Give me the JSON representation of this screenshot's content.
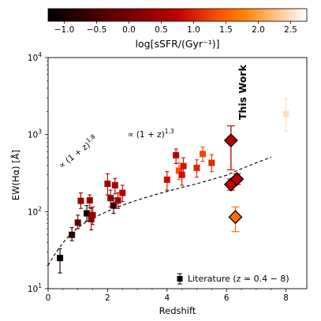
{
  "chart_data": {
    "type": "scatter",
    "xlabel": "Redshift",
    "ylabel": "EW(Hα) [Å]",
    "xlim": [
      0,
      8.7
    ],
    "ylim_log10": [
      1,
      4
    ],
    "x_scale": "linear",
    "y_scale": "log",
    "x_ticks": [
      0,
      2,
      4,
      6,
      8
    ],
    "x_tick_labels": [
      "0",
      "2",
      "4",
      "6",
      "8"
    ],
    "y_ticks": [
      10,
      100,
      1000,
      10000
    ],
    "y_tick_labels": [
      {
        "base": "10",
        "exp": "1"
      },
      {
        "base": "10",
        "exp": "2"
      },
      {
        "base": "10",
        "exp": "3"
      },
      {
        "base": "10",
        "exp": "4"
      }
    ],
    "colorbar": {
      "label": "log[sSFR/(Gyr⁻¹)]",
      "range": [
        -1.25,
        2.75
      ],
      "ticks": [
        -1.0,
        -0.5,
        0.0,
        0.5,
        1.0,
        1.5,
        2.0,
        2.5
      ],
      "tick_labels": [
        "−1.0",
        "−0.5",
        "0.0",
        "0.5",
        "1.0",
        "1.5",
        "2.0",
        "2.5"
      ],
      "colormap": "gist_heat"
    },
    "curve": {
      "style": "dashed",
      "x": [
        0.0,
        0.2,
        0.4,
        0.6,
        0.8,
        1.0,
        1.3,
        1.6,
        2.0,
        2.4,
        2.8,
        3.2,
        3.6,
        4.0,
        4.5,
        5.0,
        5.5,
        6.0,
        6.5,
        7.0,
        7.5
      ],
      "y": [
        20,
        27,
        35,
        44,
        53,
        62,
        74,
        86,
        101,
        117,
        133,
        149,
        166,
        183,
        206,
        230,
        261,
        297,
        360,
        430,
        510
      ],
      "annotations": [
        {
          "base": "∝ (1 + z)",
          "exp": "1.8",
          "x": 0.3,
          "y": 370
        },
        {
          "base": "∝ (1 + z)",
          "exp": "1.3",
          "x": 2.6,
          "y": 760
        }
      ]
    },
    "series": [
      {
        "name": "Literature",
        "marker": "square",
        "points": [
          {
            "x": 0.4,
            "y": 25,
            "ylo": 16,
            "yhi": 33,
            "c": -1.1
          },
          {
            "x": 0.8,
            "y": 50,
            "ylo": 42,
            "yhi": 62,
            "c": -0.8
          },
          {
            "x": 1.0,
            "y": 72,
            "ylo": 60,
            "yhi": 90,
            "c": -0.3
          },
          {
            "x": 1.1,
            "y": 138,
            "ylo": 110,
            "yhi": 175,
            "c": 0.35
          },
          {
            "x": 1.3,
            "y": 95,
            "ylo": 75,
            "yhi": 120,
            "c": -0.9
          },
          {
            "x": 1.4,
            "y": 140,
            "ylo": 112,
            "yhi": 165,
            "c": 0.35
          },
          {
            "x": 1.45,
            "y": 80,
            "ylo": 58,
            "yhi": 110,
            "c": 0.1
          },
          {
            "x": 1.5,
            "y": 90,
            "ylo": 68,
            "yhi": 115,
            "c": 0.4
          },
          {
            "x": 2.0,
            "y": 230,
            "ylo": 165,
            "yhi": 310,
            "c": 0.45
          },
          {
            "x": 2.1,
            "y": 150,
            "ylo": 115,
            "yhi": 190,
            "c": 0.35
          },
          {
            "x": 2.2,
            "y": 120,
            "ylo": 95,
            "yhi": 150,
            "c": -0.7
          },
          {
            "x": 2.25,
            "y": 220,
            "ylo": 170,
            "yhi": 270,
            "c": 0.55
          },
          {
            "x": 2.35,
            "y": 140,
            "ylo": 110,
            "yhi": 175,
            "c": 0.4
          },
          {
            "x": 2.5,
            "y": 175,
            "ylo": 135,
            "yhi": 220,
            "c": 0.7
          },
          {
            "x": 4.0,
            "y": 260,
            "ylo": 190,
            "yhi": 330,
            "c": 0.85
          },
          {
            "x": 4.3,
            "y": 540,
            "ylo": 420,
            "yhi": 650,
            "c": 0.6
          },
          {
            "x": 4.4,
            "y": 340,
            "ylo": 260,
            "yhi": 430,
            "c": 1.35
          },
          {
            "x": 4.5,
            "y": 300,
            "ylo": 220,
            "yhi": 390,
            "c": 0.85
          },
          {
            "x": 4.55,
            "y": 390,
            "ylo": 290,
            "yhi": 500,
            "c": 0.9
          },
          {
            "x": 5.0,
            "y": 370,
            "ylo": 280,
            "yhi": 470,
            "c": 1.05
          },
          {
            "x": 5.2,
            "y": 560,
            "ylo": 450,
            "yhi": 690,
            "c": 1.3
          },
          {
            "x": 5.5,
            "y": 430,
            "ylo": 330,
            "yhi": 550,
            "c": 1.1
          },
          {
            "x": 8.0,
            "y": 1850,
            "ylo": 1100,
            "yhi": 2900,
            "c": 2.5
          }
        ]
      },
      {
        "name": "This Work",
        "marker": "diamond",
        "points": [
          {
            "x": 6.15,
            "y": 840,
            "ylo": 350,
            "yhi": 1300,
            "c": 0.65
          },
          {
            "x": 6.15,
            "y": 225,
            "ylo": 190,
            "yhi": 265,
            "c": 0.75
          },
          {
            "x": 6.35,
            "y": 265,
            "ylo": 225,
            "yhi": 310,
            "c": 0.75
          },
          {
            "x": 6.3,
            "y": 85,
            "ylo": 55,
            "yhi": 115,
            "c": 1.6
          }
        ]
      }
    ],
    "labels": {
      "this_work": "This Work",
      "legend_text": "Literature (z ≃ 0.4 − 8)"
    }
  }
}
